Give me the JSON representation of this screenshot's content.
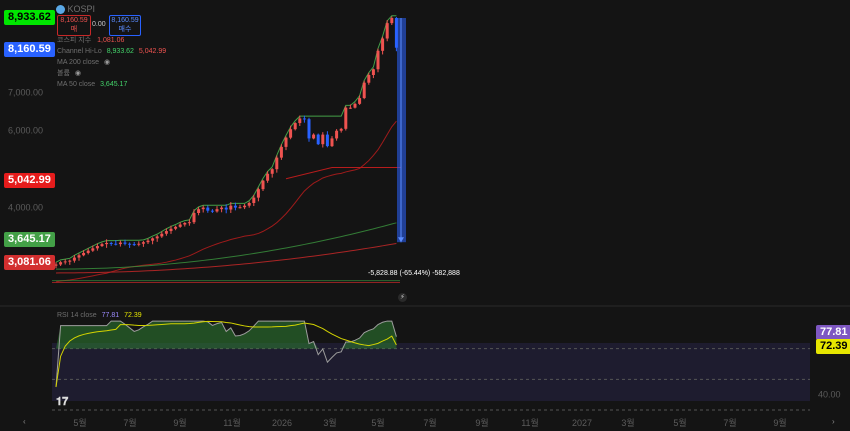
{
  "header": {
    "symbol_badge": "KOSPI",
    "sell_box": {
      "price": "8,160.59",
      "label": "매"
    },
    "spread": "0.00",
    "buy_box": {
      "price": "8,160.59",
      "label": "매수"
    },
    "row1": {
      "dim": "코스피 지수",
      "value": "1,081.06"
    },
    "row2": {
      "dim": "Channel Hi-Lo",
      "value_a": "8,933.62",
      "value_b": "5,042.99"
    },
    "row3": {
      "dim": "MA 200 close"
    },
    "row4": {
      "dim": "볼륨"
    },
    "row5": {
      "dim": "MA 50 close",
      "value": "3,645.17"
    }
  },
  "measure_label": "-5,828.88 (-65.44%) -582,888",
  "rsi_header": {
    "dim": "RSI 14 close",
    "value_a": "77.81",
    "value_b": "72.39"
  },
  "colors": {
    "up": "#ef5350",
    "down": "#2962ff",
    "channel": "#43a047",
    "ma50": "#b71c1c",
    "ma200": "#388e3c",
    "ma300": "#c62828",
    "rsi": "#9e9e9e",
    "rsi_ma": "#d4d400"
  },
  "chart_data": {
    "type": "candlestick",
    "y_axis": {
      "range": [
        1700,
        8933.62
      ],
      "ticks": [
        "7,000.00",
        "6,000.00",
        "4,000.00"
      ],
      "tick_values": [
        7000,
        6000,
        4000
      ]
    },
    "x_axis": {
      "labels": [
        "5월",
        "7월",
        "9월",
        "11월",
        "2026",
        "3월",
        "5월",
        "7월",
        "9월",
        "11월",
        "2027",
        "3월",
        "5월",
        "7월",
        "9월"
      ]
    },
    "price_tags": [
      {
        "value": "8,933.62",
        "color": "#00e600",
        "text_color": "#000000"
      },
      {
        "value": "8,160.59",
        "color": "#2962ff",
        "text_color": "#ffffff"
      },
      {
        "value": "5,042.99",
        "color": "#e61c1c",
        "text_color": "#ffffff"
      },
      {
        "value": "3,645.17",
        "color": "#43a047",
        "text_color": "#ffffff"
      },
      {
        "value": "3,081.06",
        "color": "#d32f2f",
        "text_color": "#ffffff"
      }
    ],
    "close_approx": [
      2520,
      2580,
      2600,
      2620,
      2700,
      2760,
      2820,
      2880,
      2940,
      3000,
      3050,
      3080,
      3060,
      3050,
      3090,
      3060,
      3050,
      3040,
      3060,
      3100,
      3140,
      3200,
      3250,
      3320,
      3390,
      3450,
      3500,
      3560,
      3600,
      3620,
      3860,
      3960,
      4000,
      3920,
      3900,
      3960,
      4000,
      3950,
      4050,
      4000,
      4010,
      4050,
      4120,
      4260,
      4480,
      4700,
      4880,
      5000,
      5300,
      5580,
      5820,
      6040,
      6200,
      6320,
      6300,
      5800,
      5900,
      5650,
      5900,
      5600,
      5800,
      6000,
      6050,
      6600,
      6600,
      6700,
      6850,
      7250,
      7450,
      7600,
      8080,
      8400,
      8800,
      8933,
      8160
    ],
    "rsi": {
      "range": [
        30,
        90
      ],
      "ticks": [
        "40.00"
      ],
      "tick_values": [
        40
      ],
      "bands": [
        70,
        50,
        30
      ],
      "last": 77.81,
      "ma_last": 72.39
    },
    "price_levels": {
      "channel_high": 8933.62,
      "last": 8160.59,
      "channel_low": 5042.99,
      "ma200": 3645.17,
      "ma300": 3081.06
    }
  }
}
